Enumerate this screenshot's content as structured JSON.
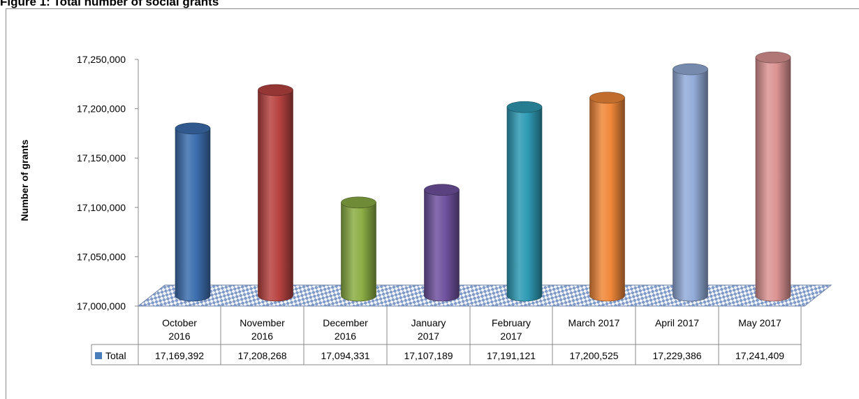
{
  "figure": {
    "title": "Figure 1: Total number of social grants"
  },
  "chart_data": {
    "type": "bar",
    "ylabel": "Number of grants",
    "ylim": [
      17000000,
      17250000
    ],
    "yticks": [
      17000000,
      17050000,
      17100000,
      17150000,
      17200000,
      17250000
    ],
    "ytick_labels": [
      "17,000,000",
      "17,050,000",
      "17,100,000",
      "17,150,000",
      "17,200,000",
      "17,250,000"
    ],
    "categories": [
      [
        "October",
        "2016"
      ],
      [
        "November",
        "2016"
      ],
      [
        "December",
        "2016"
      ],
      [
        "January",
        "2017"
      ],
      [
        "February",
        "2017"
      ],
      [
        "March 2017"
      ],
      [
        "April 2017"
      ],
      [
        "May 2017"
      ]
    ],
    "series": [
      {
        "name": "Total",
        "values": [
          17169392,
          17208268,
          17094331,
          17107189,
          17191121,
          17200525,
          17229386,
          17241409
        ],
        "value_labels": [
          "17,169,392",
          "17,208,268",
          "17,094,331",
          "17,107,189",
          "17,191,121",
          "17,200,525",
          "17,229,386",
          "17,241,409"
        ]
      }
    ],
    "bar_colors": [
      "#3d6fb0",
      "#b84441",
      "#8cae45",
      "#7153a0",
      "#2f9bb5",
      "#f0883a",
      "#93acd9",
      "#dd9494"
    ],
    "legend_swatch_color": "#4a7ebb",
    "floor_color": "#7891c0",
    "bar_style": "3d-cylinder",
    "data_table": true,
    "grid": false
  }
}
